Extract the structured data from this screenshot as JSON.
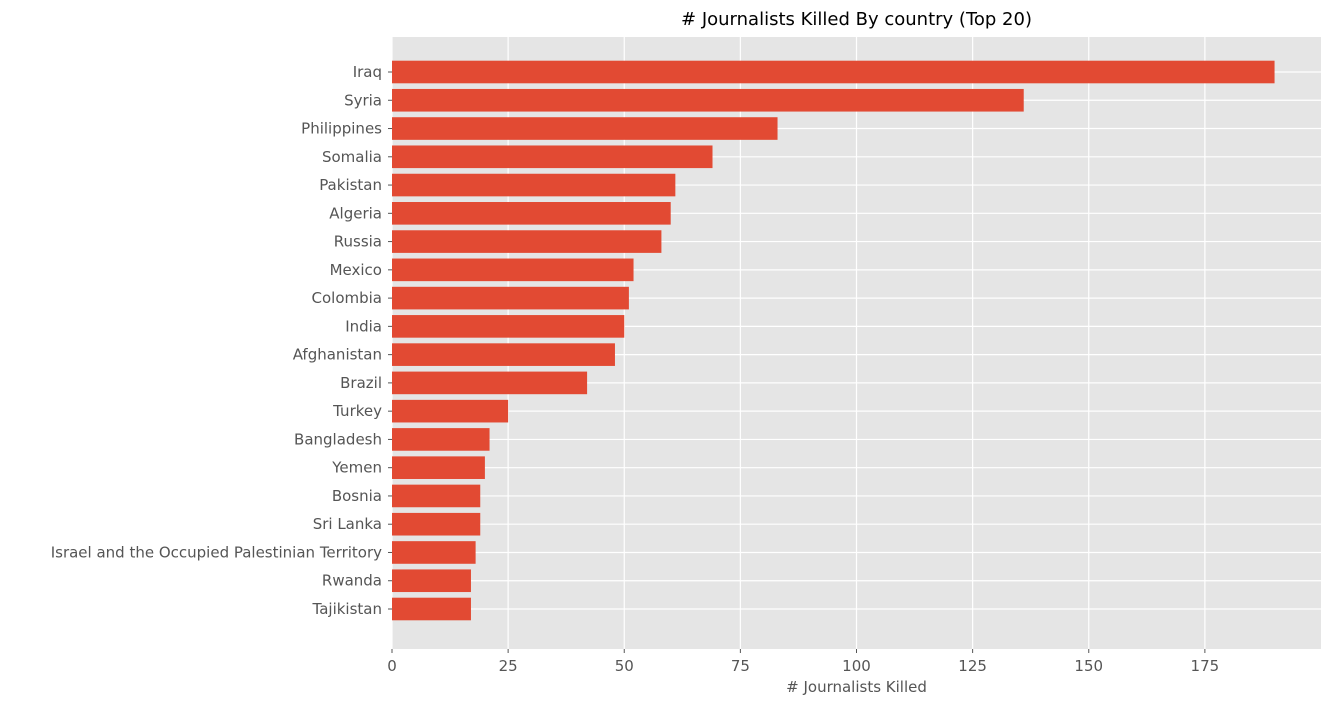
{
  "chart_data": {
    "type": "bar",
    "orientation": "horizontal",
    "title": "# Journalists Killed By country (Top 20)",
    "xlabel": "# Journalists Killed",
    "ylabel": "",
    "categories": [
      "Iraq",
      "Syria",
      "Philippines",
      "Somalia",
      "Pakistan",
      "Algeria",
      "Russia",
      "Mexico",
      "Colombia",
      "India",
      "Afghanistan",
      "Brazil",
      "Turkey",
      "Bangladesh",
      "Yemen",
      "Bosnia",
      "Sri Lanka",
      "Israel and the Occupied Palestinian Territory",
      "Rwanda",
      "Tajikistan"
    ],
    "values": [
      190,
      136,
      83,
      69,
      61,
      60,
      58,
      52,
      51,
      50,
      48,
      42,
      25,
      21,
      20,
      19,
      19,
      18,
      17,
      17
    ],
    "xlim": [
      0,
      200
    ],
    "xticks": [
      0,
      25,
      50,
      75,
      100,
      125,
      150,
      175
    ],
    "grid": true,
    "colors": {
      "bar": "#E24A33",
      "plot_background": "#E5E5E5",
      "grid": "#FFFFFF",
      "tick_text": "#555555",
      "title_text": "#000000"
    }
  }
}
